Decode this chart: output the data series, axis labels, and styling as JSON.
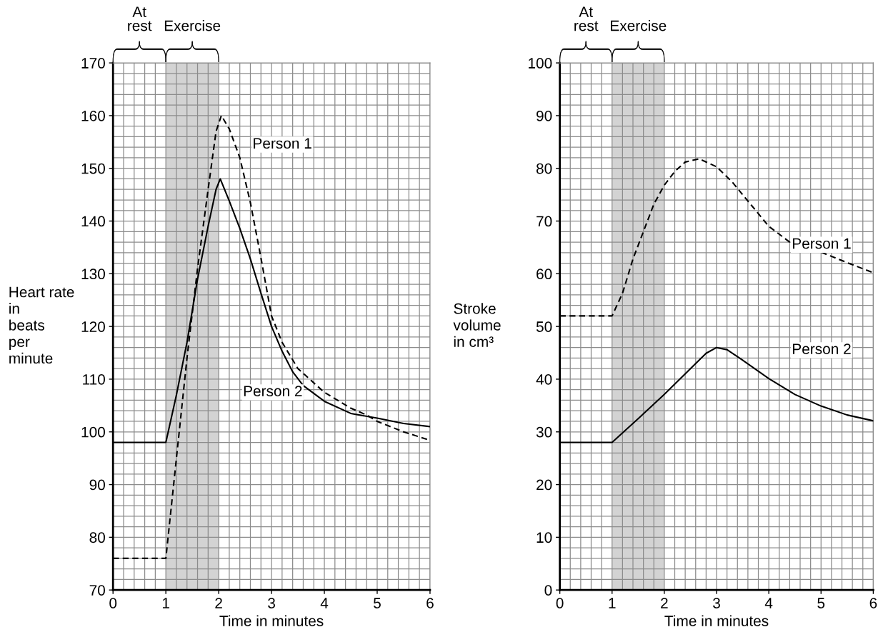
{
  "chart_data": [
    {
      "type": "line",
      "xlabel": "Time in minutes",
      "ylabel": "Heart rate\nin\nbeats\nper\nminute",
      "xlim": [
        0,
        6
      ],
      "xticks": [
        0,
        1,
        2,
        3,
        4,
        5,
        6
      ],
      "ylim": [
        70,
        170
      ],
      "yticks": [
        70,
        80,
        90,
        100,
        110,
        120,
        130,
        140,
        150,
        160,
        170
      ],
      "grid": true,
      "legend": false,
      "annotations": [
        "At\nrest"
      ],
      "bands": [
        {
          "axis": "x",
          "from": 1,
          "to": 2,
          "label": "Exercise",
          "color": "#d3d3d3"
        }
      ],
      "series": [
        {
          "name": "Person 1",
          "color": "#000000",
          "line_style": "dashed",
          "x": [
            0,
            1,
            1.2,
            1.4,
            1.6,
            1.8,
            1.95,
            2.05,
            2.2,
            2.4,
            2.6,
            2.8,
            3.0,
            3.2,
            3.5,
            4.0,
            4.5,
            4.8,
            5.0,
            5.5,
            6.0
          ],
          "values": [
            76,
            76,
            95,
            114,
            131,
            146,
            157,
            160,
            157.5,
            152,
            143.5,
            133,
            122,
            117,
            112,
            107.5,
            104.5,
            103.2,
            102,
            100,
            98.4
          ]
        },
        {
          "name": "Person 2",
          "color": "#000000",
          "line_style": "solid",
          "x": [
            0,
            1,
            1.2,
            1.4,
            1.6,
            1.8,
            1.95,
            2.03,
            2.2,
            2.4,
            2.6,
            2.8,
            3.0,
            3.2,
            3.4,
            3.6,
            4.0,
            4.5,
            5.0,
            5.5,
            6.0
          ],
          "values": [
            98,
            98,
            107,
            117,
            129,
            139,
            146,
            148,
            143.8,
            138.6,
            132.8,
            126.3,
            120,
            115.3,
            111.4,
            108.8,
            105.8,
            103.5,
            102.6,
            101.6,
            101
          ]
        }
      ]
    },
    {
      "type": "line",
      "xlabel": "Time in minutes",
      "ylabel": "Stroke\nvolume\nin cm³",
      "xlim": [
        0,
        6
      ],
      "xticks": [
        0,
        1,
        2,
        3,
        4,
        5,
        6
      ],
      "ylim": [
        0,
        100
      ],
      "yticks": [
        0,
        10,
        20,
        30,
        40,
        50,
        60,
        70,
        80,
        90,
        100
      ],
      "grid": true,
      "legend": false,
      "annotations": [
        "At\nrest"
      ],
      "bands": [
        {
          "axis": "x",
          "from": 1,
          "to": 2,
          "label": "Exercise",
          "color": "#d3d3d3"
        }
      ],
      "series": [
        {
          "name": "Person 1",
          "color": "#000000",
          "line_style": "dashed",
          "x": [
            0,
            1,
            1.2,
            1.4,
            1.6,
            1.8,
            2.0,
            2.2,
            2.4,
            2.67,
            3.0,
            3.3,
            3.6,
            4.0,
            4.4,
            5.0,
            5.5,
            6.0
          ],
          "values": [
            52,
            52,
            56.3,
            62.8,
            68,
            73.2,
            76.8,
            79.4,
            81.2,
            81.8,
            80.3,
            77.4,
            73.8,
            69,
            66,
            64.1,
            62.1,
            60.2
          ]
        },
        {
          "name": "Person 2",
          "color": "#000000",
          "line_style": "solid",
          "x": [
            0,
            1,
            1.5,
            2.0,
            2.5,
            2.8,
            3.0,
            3.2,
            3.5,
            4.0,
            4.5,
            5.0,
            5.5,
            6.0
          ],
          "values": [
            28,
            28,
            32.5,
            37.1,
            42,
            44.9,
            46,
            45.6,
            43.6,
            40.1,
            37.1,
            34.9,
            33.2,
            32.1
          ]
        }
      ]
    }
  ]
}
